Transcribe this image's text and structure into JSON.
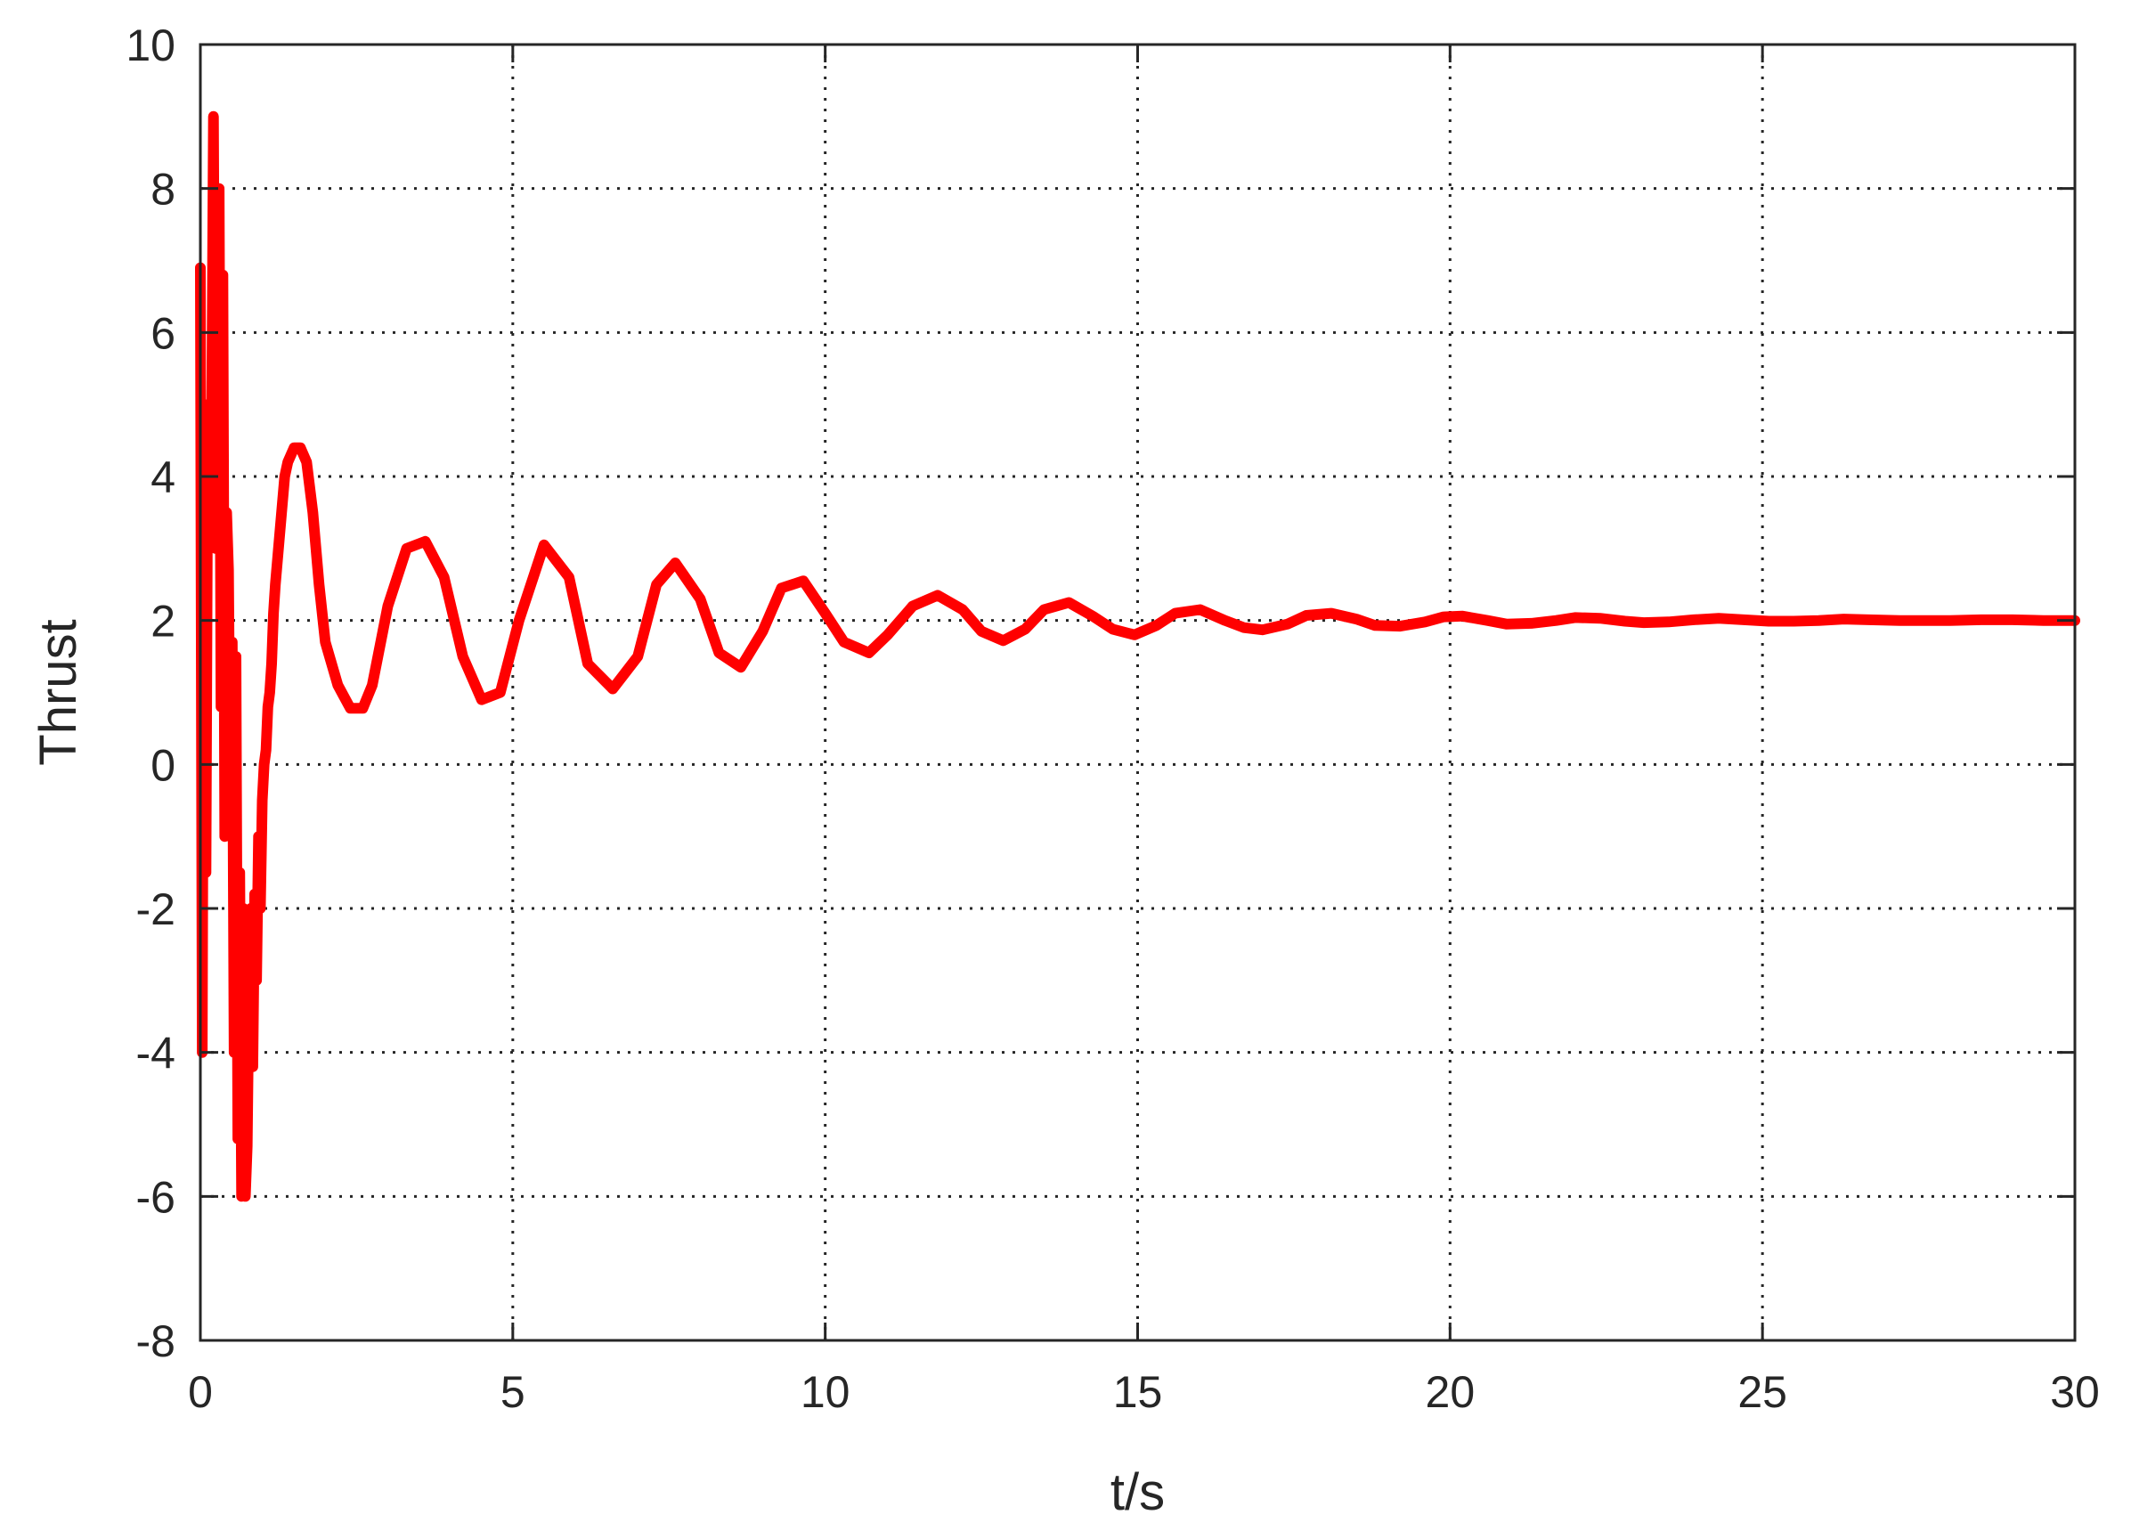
{
  "chart_data": {
    "type": "line",
    "title": "",
    "xlabel": "t/s",
    "ylabel": "Thrust",
    "xlim": [
      0,
      30
    ],
    "ylim": [
      -8,
      10
    ],
    "xticks": [
      0,
      5,
      10,
      15,
      20,
      25,
      30
    ],
    "yticks": [
      -8,
      -6,
      -4,
      -2,
      0,
      2,
      4,
      6,
      8,
      10
    ],
    "xtick_labels": [
      "0",
      "5",
      "10",
      "15",
      "20",
      "25",
      "30"
    ],
    "ytick_labels": [
      "-8",
      "-6",
      "-4",
      "-2",
      "0",
      "2",
      "4",
      "6",
      "8",
      "10"
    ],
    "grid": true,
    "grid_style": "dotted",
    "legend": "none",
    "series": [
      {
        "color": "#ff0000",
        "x": [
          0,
          0.03,
          0.06,
          0.09,
          0.12,
          0.15,
          0.18,
          0.21,
          0.24,
          0.27,
          0.3,
          0.33,
          0.36,
          0.39,
          0.42,
          0.45,
          0.48,
          0.51,
          0.54,
          0.57,
          0.6,
          0.63,
          0.66,
          0.69,
          0.72,
          0.75,
          0.78,
          0.81,
          0.84,
          0.87,
          0.9,
          0.93,
          0.96,
          0.99,
          1.02,
          1.05,
          1.08,
          1.11,
          1.14,
          1.17,
          1.2,
          1.25,
          1.3,
          1.35,
          1.4,
          1.5,
          1.6,
          1.7,
          1.8,
          1.9,
          2.0,
          2.2,
          2.4,
          2.6,
          2.75,
          3.0,
          3.3,
          3.6,
          3.9,
          4.2,
          4.5,
          4.8,
          5.1,
          5.5,
          5.9,
          6.2,
          6.6,
          7.0,
          7.3,
          7.6,
          8.0,
          8.3,
          8.65,
          9.0,
          9.3,
          9.65,
          10.0,
          10.3,
          10.7,
          11.0,
          11.4,
          11.8,
          12.2,
          12.5,
          12.85,
          13.2,
          13.5,
          13.9,
          14.3,
          14.6,
          14.95,
          15.3,
          15.6,
          16.0,
          16.4,
          16.7,
          17.0,
          17.4,
          17.7,
          18.1,
          18.5,
          18.8,
          19.2,
          19.6,
          19.9,
          20.2,
          20.6,
          20.9,
          21.3,
          21.7,
          22.0,
          22.4,
          22.8,
          23.1,
          23.5,
          23.9,
          24.3,
          24.7,
          25.1,
          25.5,
          25.9,
          26.3,
          26.7,
          27.2,
          27.6,
          28.0,
          28.5,
          29.0,
          29.5,
          30.0
        ],
        "y": [
          6.9,
          -4.0,
          4.8,
          -1.5,
          5.0,
          3.0,
          4.6,
          9.0,
          3.0,
          7.0,
          8.0,
          0.8,
          6.8,
          -1.0,
          3.5,
          2.7,
          -0.8,
          1.7,
          -4.0,
          1.5,
          -5.2,
          -1.5,
          -6.0,
          -2.0,
          -6.0,
          -5.3,
          -3.0,
          -2.0,
          -4.2,
          -1.8,
          -3.0,
          -1.0,
          -2.0,
          -0.5,
          0.0,
          0.2,
          0.8,
          1.0,
          1.4,
          2.1,
          2.5,
          3.0,
          3.5,
          4.0,
          4.2,
          4.4,
          4.4,
          4.2,
          3.5,
          2.5,
          1.7,
          1.1,
          0.78,
          0.78,
          1.1,
          2.2,
          3.0,
          3.1,
          2.6,
          1.5,
          0.9,
          1.0,
          2.0,
          3.05,
          2.6,
          1.4,
          1.05,
          1.5,
          2.5,
          2.8,
          2.3,
          1.55,
          1.35,
          1.85,
          2.45,
          2.55,
          2.1,
          1.7,
          1.55,
          1.8,
          2.2,
          2.35,
          2.15,
          1.85,
          1.72,
          1.88,
          2.15,
          2.25,
          2.05,
          1.88,
          1.8,
          1.93,
          2.1,
          2.15,
          2.0,
          1.9,
          1.87,
          1.95,
          2.07,
          2.1,
          2.02,
          1.93,
          1.92,
          1.98,
          2.05,
          2.06,
          2.0,
          1.95,
          1.96,
          2.0,
          2.04,
          2.03,
          1.99,
          1.97,
          1.98,
          2.01,
          2.03,
          2.01,
          1.99,
          1.99,
          2.0,
          2.02,
          2.01,
          2.0,
          2.0,
          2.0,
          2.01,
          2.01,
          2.0,
          2.0
        ]
      }
    ]
  }
}
